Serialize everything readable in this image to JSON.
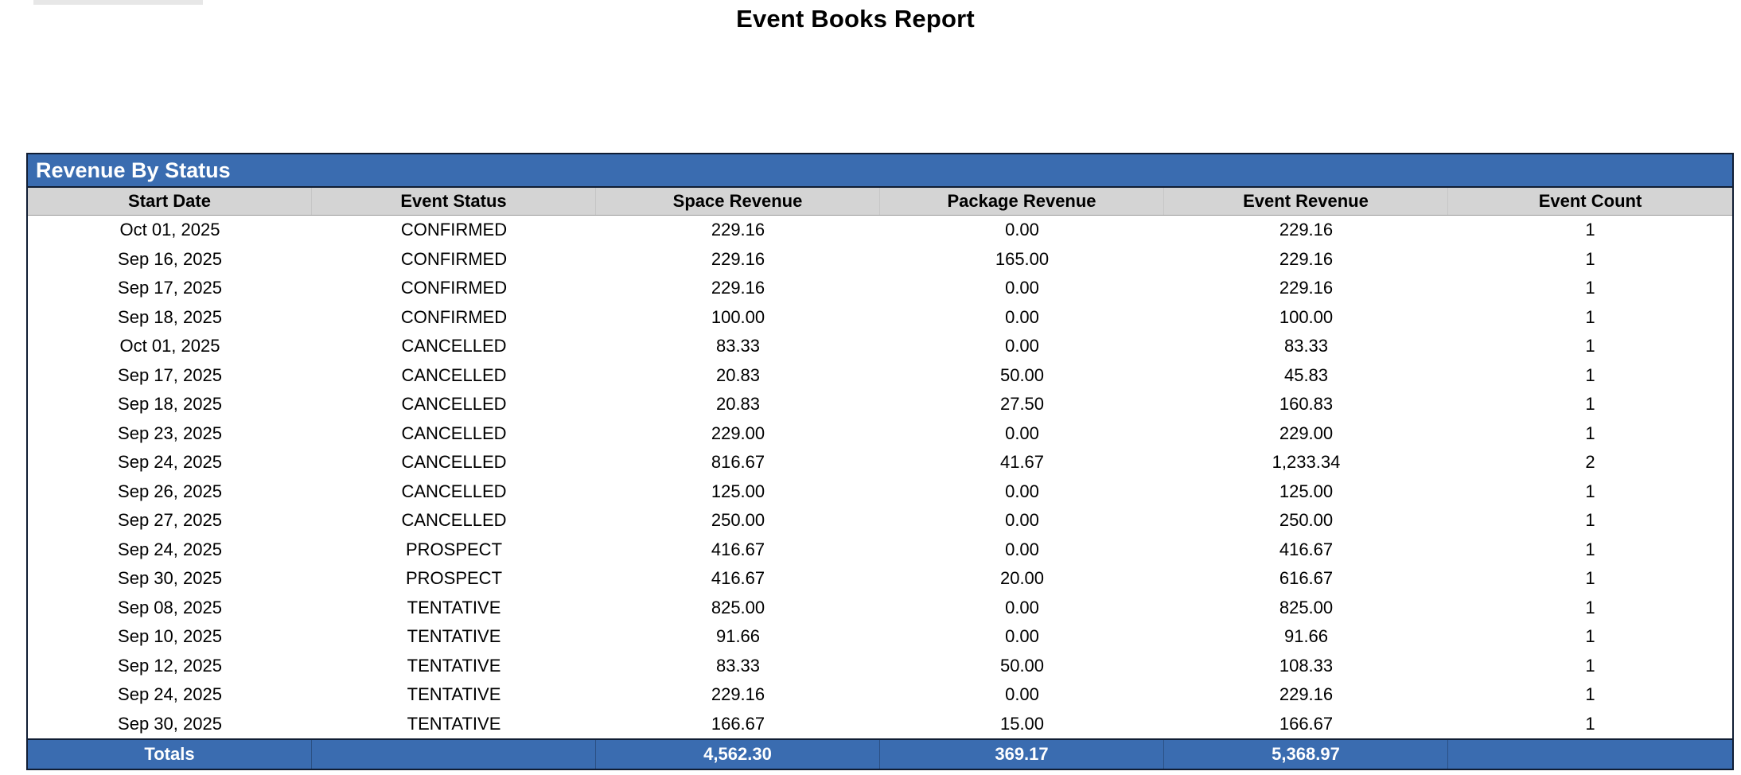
{
  "page": {
    "title": "Event Books Report"
  },
  "report": {
    "section_title": "Revenue By Status",
    "columns": [
      "Start Date",
      "Event Status",
      "Space Revenue",
      "Package Revenue",
      "Event Revenue",
      "Event Count"
    ],
    "rows": [
      {
        "start_date": "Oct 01, 2025",
        "event_status": "CONFIRMED",
        "space_revenue": "229.16",
        "package_revenue": "0.00",
        "event_revenue": "229.16",
        "event_count": "1"
      },
      {
        "start_date": "Sep 16, 2025",
        "event_status": "CONFIRMED",
        "space_revenue": "229.16",
        "package_revenue": "165.00",
        "event_revenue": "229.16",
        "event_count": "1"
      },
      {
        "start_date": "Sep 17, 2025",
        "event_status": "CONFIRMED",
        "space_revenue": "229.16",
        "package_revenue": "0.00",
        "event_revenue": "229.16",
        "event_count": "1"
      },
      {
        "start_date": "Sep 18, 2025",
        "event_status": "CONFIRMED",
        "space_revenue": "100.00",
        "package_revenue": "0.00",
        "event_revenue": "100.00",
        "event_count": "1"
      },
      {
        "start_date": "Oct 01, 2025",
        "event_status": "CANCELLED",
        "space_revenue": "83.33",
        "package_revenue": "0.00",
        "event_revenue": "83.33",
        "event_count": "1"
      },
      {
        "start_date": "Sep 17, 2025",
        "event_status": "CANCELLED",
        "space_revenue": "20.83",
        "package_revenue": "50.00",
        "event_revenue": "45.83",
        "event_count": "1"
      },
      {
        "start_date": "Sep 18, 2025",
        "event_status": "CANCELLED",
        "space_revenue": "20.83",
        "package_revenue": "27.50",
        "event_revenue": "160.83",
        "event_count": "1"
      },
      {
        "start_date": "Sep 23, 2025",
        "event_status": "CANCELLED",
        "space_revenue": "229.00",
        "package_revenue": "0.00",
        "event_revenue": "229.00",
        "event_count": "1"
      },
      {
        "start_date": "Sep 24, 2025",
        "event_status": "CANCELLED",
        "space_revenue": "816.67",
        "package_revenue": "41.67",
        "event_revenue": "1,233.34",
        "event_count": "2"
      },
      {
        "start_date": "Sep 26, 2025",
        "event_status": "CANCELLED",
        "space_revenue": "125.00",
        "package_revenue": "0.00",
        "event_revenue": "125.00",
        "event_count": "1"
      },
      {
        "start_date": "Sep 27, 2025",
        "event_status": "CANCELLED",
        "space_revenue": "250.00",
        "package_revenue": "0.00",
        "event_revenue": "250.00",
        "event_count": "1"
      },
      {
        "start_date": "Sep 24, 2025",
        "event_status": "PROSPECT",
        "space_revenue": "416.67",
        "package_revenue": "0.00",
        "event_revenue": "416.67",
        "event_count": "1"
      },
      {
        "start_date": "Sep 30, 2025",
        "event_status": "PROSPECT",
        "space_revenue": "416.67",
        "package_revenue": "20.00",
        "event_revenue": "616.67",
        "event_count": "1"
      },
      {
        "start_date": "Sep 08, 2025",
        "event_status": "TENTATIVE",
        "space_revenue": "825.00",
        "package_revenue": "0.00",
        "event_revenue": "825.00",
        "event_count": "1"
      },
      {
        "start_date": "Sep 10, 2025",
        "event_status": "TENTATIVE",
        "space_revenue": "91.66",
        "package_revenue": "0.00",
        "event_revenue": "91.66",
        "event_count": "1"
      },
      {
        "start_date": "Sep 12, 2025",
        "event_status": "TENTATIVE",
        "space_revenue": "83.33",
        "package_revenue": "50.00",
        "event_revenue": "108.33",
        "event_count": "1"
      },
      {
        "start_date": "Sep 24, 2025",
        "event_status": "TENTATIVE",
        "space_revenue": "229.16",
        "package_revenue": "0.00",
        "event_revenue": "229.16",
        "event_count": "1"
      },
      {
        "start_date": "Sep 30, 2025",
        "event_status": "TENTATIVE",
        "space_revenue": "166.67",
        "package_revenue": "15.00",
        "event_revenue": "166.67",
        "event_count": "1"
      }
    ],
    "totals": {
      "label": "Totals",
      "event_status": "",
      "space_revenue": "4,562.30",
      "package_revenue": "369.17",
      "event_revenue": "5,368.97",
      "event_count": ""
    }
  },
  "colors": {
    "accent_blue": "#3a6cb0",
    "header_gray": "#d4d4d4",
    "border_dark": "#101d33"
  }
}
